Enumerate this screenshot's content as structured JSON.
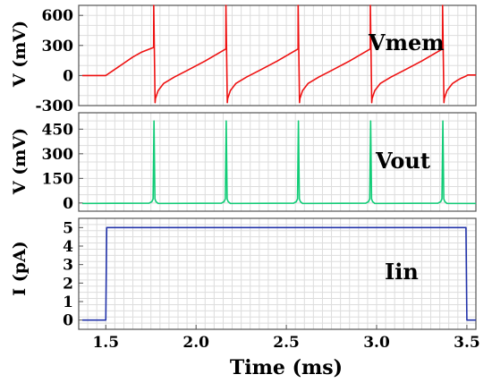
{
  "figure": {
    "xlabel": "Time (ms)",
    "x_ticks": [
      1.5,
      2.0,
      2.5,
      3.0,
      3.5
    ],
    "x_tick_labels": [
      "1.5",
      "2.0",
      "2.5",
      "3.0",
      "3.5"
    ],
    "xlim": [
      1.35,
      3.55
    ],
    "grid": true
  },
  "chart_data": [
    {
      "type": "line",
      "title": "",
      "ylabel": "V (mV)",
      "annotation": "Vmem",
      "ylim": [
        -300,
        700
      ],
      "y_ticks": [
        -300,
        0,
        300,
        600
      ],
      "y_tick_labels": [
        "-300",
        "0",
        "300",
        "600"
      ],
      "color": "#ee1111",
      "series": [
        {
          "x": [
            1.37,
            1.5,
            1.565,
            1.6,
            1.65,
            1.7,
            1.765,
            1.7655,
            1.773,
            1.775,
            1.79,
            1.82,
            1.88,
            1.95,
            2.05,
            2.165,
            2.1655,
            2.173,
            2.175,
            2.19,
            2.22,
            2.28,
            2.35,
            2.45,
            2.565,
            2.5655,
            2.573,
            2.575,
            2.59,
            2.62,
            2.68,
            2.75,
            2.85,
            2.965,
            2.9655,
            2.973,
            2.975,
            2.99,
            3.02,
            3.08,
            3.15,
            3.25,
            3.365,
            3.3655,
            3.373,
            3.375,
            3.39,
            3.42,
            3.45,
            3.47,
            3.49,
            3.505,
            3.55
          ],
          "y": [
            0,
            0,
            80,
            123,
            185,
            235,
            280,
            700,
            -270,
            -230,
            -150,
            -80,
            -15,
            50,
            145,
            265,
            700,
            -270,
            -230,
            -150,
            -80,
            -15,
            50,
            145,
            265,
            700,
            -270,
            -230,
            -150,
            -80,
            -15,
            50,
            145,
            265,
            700,
            -270,
            -230,
            -150,
            -80,
            -15,
            50,
            145,
            265,
            700,
            -270,
            -230,
            -150,
            -80,
            -45,
            -25,
            -10,
            5,
            5
          ]
        }
      ]
    },
    {
      "type": "line",
      "title": "",
      "ylabel": "V (mV)",
      "annotation": "Vout",
      "ylim": [
        -50,
        550
      ],
      "y_ticks": [
        0,
        150,
        300,
        450
      ],
      "y_tick_labels": [
        "0",
        "150",
        "300",
        "450"
      ],
      "color": "#11cc77",
      "series": [
        {
          "x": [
            1.37,
            1.74,
            1.755,
            1.762,
            1.767,
            1.772,
            1.778,
            1.79,
            2.14,
            2.155,
            2.162,
            2.167,
            2.172,
            2.178,
            2.19,
            2.54,
            2.555,
            2.562,
            2.567,
            2.572,
            2.578,
            2.59,
            2.94,
            2.955,
            2.962,
            2.967,
            2.972,
            2.978,
            2.99,
            3.34,
            3.355,
            3.362,
            3.367,
            3.372,
            3.378,
            3.39,
            3.55
          ],
          "y": [
            -3,
            -1,
            8,
            25,
            500,
            25,
            8,
            -3,
            -1,
            8,
            25,
            500,
            25,
            8,
            -3,
            -1,
            8,
            25,
            500,
            25,
            8,
            -3,
            -1,
            8,
            25,
            500,
            25,
            8,
            -3,
            -1,
            8,
            25,
            500,
            25,
            8,
            -3,
            -3
          ]
        }
      ]
    },
    {
      "type": "line",
      "title": "",
      "ylabel": "I (pA)",
      "annotation": "Iin",
      "ylim": [
        -0.5,
        5.5
      ],
      "y_ticks": [
        0,
        1,
        2,
        3,
        4,
        5
      ],
      "y_tick_labels": [
        "0",
        "1",
        "2",
        "3",
        "4",
        "5"
      ],
      "color": "#2233aa",
      "series": [
        {
          "x": [
            1.37,
            1.5,
            1.505,
            3.495,
            3.5,
            3.55
          ],
          "y": [
            0,
            0,
            5,
            5,
            0,
            0
          ]
        }
      ]
    }
  ]
}
